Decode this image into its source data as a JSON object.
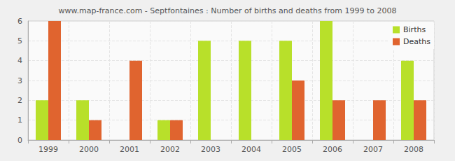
{
  "chart_data": {
    "type": "bar",
    "title": "www.map-france.com - Septfontaines : Number of births and deaths from 1999 to 2008",
    "categories": [
      "1999",
      "2000",
      "2001",
      "2002",
      "2003",
      "2004",
      "2005",
      "2006",
      "2007",
      "2008"
    ],
    "series": [
      {
        "name": "Births",
        "color": "#b8e02a",
        "values": [
          2,
          2,
          0,
          1,
          5,
          5,
          5,
          6,
          0,
          4
        ]
      },
      {
        "name": "Deaths",
        "color": "#e0642f",
        "values": [
          6,
          1,
          4,
          1,
          0,
          0,
          3,
          2,
          2,
          2
        ]
      }
    ],
    "ylim": [
      0,
      6
    ],
    "yticks": [
      0,
      1,
      2,
      3,
      4,
      5,
      6
    ],
    "grid": true,
    "legend": "top-right"
  }
}
